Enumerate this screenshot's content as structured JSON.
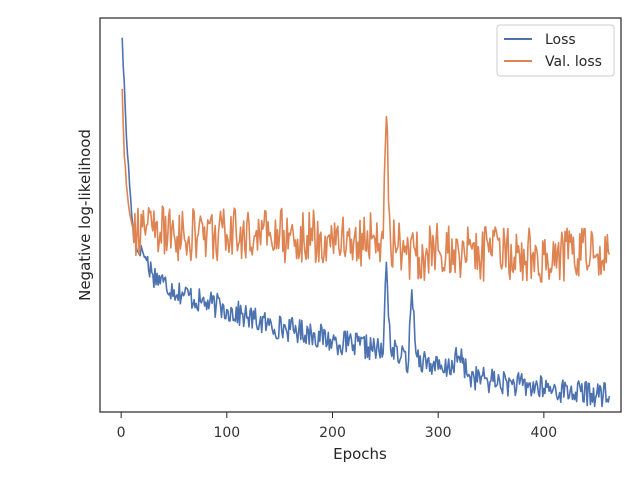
{
  "chart_data": {
    "type": "line",
    "xlabel": "Epochs",
    "ylabel": "Negative log-likelihood",
    "xlim": [
      -20,
      473
    ],
    "ylim": [
      0,
      100
    ],
    "x_ticks": [
      0,
      100,
      200,
      300,
      400
    ],
    "y_ticks_labeled": false,
    "grid": false,
    "legend_position": "top-right",
    "series": [
      {
        "name": "Loss",
        "color": "#4c72b0",
        "x": [
          1,
          5,
          10,
          15,
          20,
          30,
          40,
          50,
          60,
          75,
          90,
          100,
          120,
          140,
          160,
          180,
          200,
          220,
          240,
          248,
          251,
          255,
          265,
          272,
          275,
          280,
          295,
          305,
          320,
          330,
          350,
          370,
          400,
          430,
          450,
          462
        ],
        "y": [
          95,
          70,
          50,
          41,
          41,
          35,
          33,
          31,
          30,
          28,
          27,
          26,
          24,
          22,
          21,
          20,
          18,
          17,
          16,
          15,
          38,
          16,
          14,
          13,
          31,
          14,
          12,
          10,
          14,
          9,
          8,
          7,
          6,
          5,
          4.5,
          4
        ]
      },
      {
        "name": "Val. loss",
        "color": "#dd8452",
        "x": [
          1,
          3,
          6,
          10,
          15,
          20,
          30,
          50,
          100,
          150,
          200,
          240,
          248,
          251,
          255,
          262,
          270,
          290,
          300,
          350,
          400,
          450,
          462
        ],
        "y": [
          82,
          65,
          55,
          48,
          45,
          47,
          46,
          45,
          45,
          45,
          44,
          44,
          44,
          75,
          43,
          42,
          40,
          40,
          41,
          40,
          40,
          40,
          40
        ]
      }
    ]
  }
}
